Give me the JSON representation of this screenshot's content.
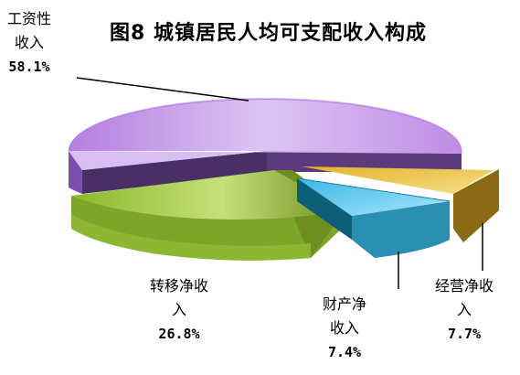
{
  "chart_data": {
    "type": "pie",
    "title": "图8 城镇居民人均可支配收入构成",
    "categories": [
      "工资性收入",
      "转移净收入",
      "财产净收入",
      "经营净收入"
    ],
    "values": [
      58.1,
      26.8,
      7.4,
      7.7
    ],
    "labels": {
      "wage": {
        "line1": "工资性",
        "line2": "收入",
        "pct": "58.1%"
      },
      "transfer": {
        "line1": "转移净收",
        "line2": "入",
        "pct": "26.8%"
      },
      "property": {
        "line1": "财产净",
        "line2": "收入",
        "pct": "7.4%"
      },
      "business": {
        "line1": "经营净收",
        "line2": "入",
        "pct": "7.7%"
      }
    },
    "colors": {
      "wage": "#c79ae8",
      "transfer": "#8fbf2e",
      "property": "#4fc6ee",
      "business": "#e9c13a"
    }
  }
}
